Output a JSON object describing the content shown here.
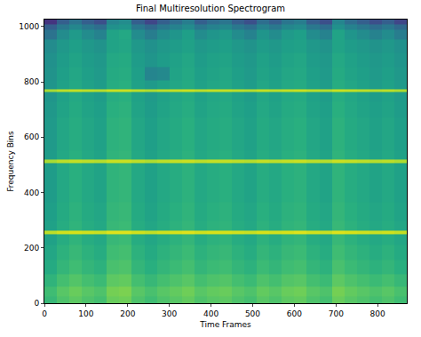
{
  "chart_data": {
    "type": "heatmap",
    "title": "Final Multiresolution Spectrogram",
    "x_label": "Time Frames",
    "y_label": "Frequency Bins",
    "color": "Viridis",
    "xlim": [
      0,
      870
    ],
    "ylim": [
      0,
      1025
    ],
    "xticks": [
      0,
      100,
      200,
      300,
      400,
      500,
      600,
      700,
      800
    ],
    "yticks": [
      0,
      200,
      400,
      600,
      800,
      1000
    ],
    "zlim": [
      0,
      1
    ],
    "x": [
      15,
      45,
      75,
      105,
      135,
      165,
      195,
      225,
      255,
      285,
      315,
      345,
      375,
      405,
      435,
      465,
      495,
      525,
      555,
      585,
      615,
      645,
      675,
      705,
      735,
      765,
      795,
      825,
      855
    ],
    "y": [
      8,
      40,
      80,
      130,
      180,
      244,
      256,
      268,
      330,
      400,
      450,
      500,
      512,
      524,
      580,
      640,
      700,
      756,
      768,
      780,
      830,
      880,
      930,
      975,
      1000,
      1018
    ],
    "cells": [
      [
        0.67,
        0.72,
        0.75,
        0.72,
        0.7,
        0.77,
        0.78,
        0.72,
        0.69,
        0.72,
        0.74,
        0.76,
        0.72,
        0.74,
        0.75,
        0.72,
        0.7,
        0.74,
        0.72,
        0.75,
        0.76,
        0.72,
        0.7,
        0.77,
        0.74,
        0.72,
        0.7,
        0.72,
        0.69
      ],
      [
        0.69,
        0.74,
        0.77,
        0.74,
        0.72,
        0.79,
        0.8,
        0.74,
        0.71,
        0.74,
        0.76,
        0.78,
        0.74,
        0.76,
        0.77,
        0.74,
        0.72,
        0.76,
        0.74,
        0.77,
        0.78,
        0.74,
        0.72,
        0.79,
        0.76,
        0.74,
        0.72,
        0.74,
        0.71
      ],
      [
        0.65,
        0.7,
        0.73,
        0.7,
        0.68,
        0.75,
        0.76,
        0.7,
        0.67,
        0.7,
        0.72,
        0.74,
        0.7,
        0.72,
        0.73,
        0.7,
        0.68,
        0.72,
        0.7,
        0.73,
        0.74,
        0.7,
        0.68,
        0.75,
        0.72,
        0.7,
        0.68,
        0.7,
        0.67
      ],
      [
        0.61,
        0.66,
        0.69,
        0.66,
        0.64,
        0.71,
        0.72,
        0.66,
        0.63,
        0.66,
        0.68,
        0.7,
        0.66,
        0.68,
        0.69,
        0.66,
        0.64,
        0.68,
        0.66,
        0.69,
        0.7,
        0.66,
        0.64,
        0.71,
        0.68,
        0.66,
        0.64,
        0.66,
        0.63
      ],
      [
        0.59,
        0.64,
        0.67,
        0.64,
        0.62,
        0.69,
        0.7,
        0.64,
        0.61,
        0.64,
        0.66,
        0.68,
        0.64,
        0.66,
        0.67,
        0.64,
        0.62,
        0.66,
        0.64,
        0.67,
        0.68,
        0.64,
        0.62,
        0.69,
        0.66,
        0.64,
        0.62,
        0.64,
        0.61
      ],
      [
        0.57,
        0.62,
        0.65,
        0.62,
        0.6,
        0.67,
        0.68,
        0.62,
        0.59,
        0.62,
        0.64,
        0.66,
        0.62,
        0.64,
        0.65,
        0.62,
        0.6,
        0.64,
        0.62,
        0.65,
        0.66,
        0.62,
        0.6,
        0.67,
        0.64,
        0.62,
        0.6,
        0.62,
        0.59
      ],
      [
        0.9,
        0.93,
        0.94,
        0.93,
        0.92,
        0.95,
        0.95,
        0.93,
        0.91,
        0.93,
        0.94,
        0.95,
        0.93,
        0.94,
        0.94,
        0.93,
        0.92,
        0.94,
        0.93,
        0.94,
        0.95,
        0.93,
        0.92,
        0.95,
        0.94,
        0.93,
        0.92,
        0.93,
        0.91
      ],
      [
        0.57,
        0.62,
        0.65,
        0.62,
        0.6,
        0.67,
        0.68,
        0.62,
        0.59,
        0.62,
        0.64,
        0.66,
        0.62,
        0.64,
        0.65,
        0.62,
        0.6,
        0.64,
        0.62,
        0.65,
        0.66,
        0.62,
        0.6,
        0.67,
        0.64,
        0.62,
        0.6,
        0.62,
        0.59
      ],
      [
        0.56,
        0.61,
        0.64,
        0.61,
        0.59,
        0.66,
        0.67,
        0.61,
        0.58,
        0.61,
        0.63,
        0.65,
        0.61,
        0.63,
        0.64,
        0.61,
        0.59,
        0.63,
        0.61,
        0.64,
        0.65,
        0.61,
        0.59,
        0.66,
        0.63,
        0.61,
        0.59,
        0.61,
        0.58
      ],
      [
        0.55,
        0.6,
        0.63,
        0.6,
        0.58,
        0.65,
        0.66,
        0.6,
        0.57,
        0.6,
        0.62,
        0.64,
        0.6,
        0.62,
        0.63,
        0.6,
        0.58,
        0.62,
        0.6,
        0.63,
        0.64,
        0.6,
        0.58,
        0.65,
        0.62,
        0.6,
        0.58,
        0.6,
        0.57
      ],
      [
        0.55,
        0.6,
        0.63,
        0.6,
        0.58,
        0.65,
        0.66,
        0.6,
        0.57,
        0.6,
        0.62,
        0.64,
        0.6,
        0.62,
        0.63,
        0.6,
        0.58,
        0.62,
        0.6,
        0.63,
        0.64,
        0.6,
        0.58,
        0.65,
        0.62,
        0.6,
        0.58,
        0.6,
        0.57
      ],
      [
        0.55,
        0.6,
        0.63,
        0.6,
        0.58,
        0.65,
        0.66,
        0.6,
        0.57,
        0.6,
        0.62,
        0.64,
        0.6,
        0.62,
        0.63,
        0.6,
        0.58,
        0.62,
        0.6,
        0.63,
        0.64,
        0.6,
        0.58,
        0.65,
        0.62,
        0.6,
        0.58,
        0.6,
        0.57
      ],
      [
        0.87,
        0.9,
        0.91,
        0.9,
        0.89,
        0.92,
        0.92,
        0.9,
        0.88,
        0.9,
        0.91,
        0.92,
        0.9,
        0.91,
        0.91,
        0.9,
        0.89,
        0.91,
        0.9,
        0.91,
        0.92,
        0.9,
        0.89,
        0.92,
        0.91,
        0.9,
        0.89,
        0.9,
        0.88
      ],
      [
        0.55,
        0.6,
        0.63,
        0.6,
        0.58,
        0.65,
        0.66,
        0.6,
        0.57,
        0.6,
        0.62,
        0.64,
        0.6,
        0.62,
        0.63,
        0.6,
        0.58,
        0.62,
        0.6,
        0.63,
        0.64,
        0.6,
        0.58,
        0.65,
        0.62,
        0.6,
        0.58,
        0.6,
        0.57
      ],
      [
        0.54,
        0.59,
        0.62,
        0.59,
        0.57,
        0.64,
        0.65,
        0.59,
        0.56,
        0.59,
        0.61,
        0.63,
        0.59,
        0.61,
        0.62,
        0.59,
        0.57,
        0.61,
        0.59,
        0.62,
        0.63,
        0.59,
        0.57,
        0.64,
        0.61,
        0.59,
        0.57,
        0.59,
        0.56
      ],
      [
        0.54,
        0.59,
        0.62,
        0.59,
        0.57,
        0.64,
        0.65,
        0.59,
        0.56,
        0.59,
        0.61,
        0.63,
        0.59,
        0.61,
        0.62,
        0.59,
        0.57,
        0.61,
        0.59,
        0.62,
        0.63,
        0.59,
        0.57,
        0.64,
        0.61,
        0.59,
        0.57,
        0.59,
        0.56
      ],
      [
        0.53,
        0.58,
        0.61,
        0.58,
        0.56,
        0.63,
        0.64,
        0.58,
        0.55,
        0.58,
        0.6,
        0.62,
        0.58,
        0.6,
        0.61,
        0.58,
        0.56,
        0.6,
        0.58,
        0.61,
        0.62,
        0.58,
        0.56,
        0.63,
        0.6,
        0.58,
        0.56,
        0.58,
        0.55
      ],
      [
        0.52,
        0.57,
        0.6,
        0.57,
        0.55,
        0.62,
        0.63,
        0.57,
        0.54,
        0.57,
        0.59,
        0.61,
        0.57,
        0.59,
        0.6,
        0.57,
        0.55,
        0.59,
        0.57,
        0.6,
        0.61,
        0.57,
        0.55,
        0.62,
        0.59,
        0.57,
        0.55,
        0.57,
        0.54
      ],
      [
        0.87,
        0.9,
        0.91,
        0.9,
        0.89,
        0.92,
        0.92,
        0.9,
        0.88,
        0.9,
        0.91,
        0.92,
        0.9,
        0.91,
        0.91,
        0.9,
        0.89,
        0.91,
        0.9,
        0.91,
        0.92,
        0.9,
        0.89,
        0.92,
        0.91,
        0.9,
        0.89,
        0.9,
        0.88
      ],
      [
        0.52,
        0.57,
        0.6,
        0.57,
        0.55,
        0.62,
        0.63,
        0.57,
        0.54,
        0.57,
        0.59,
        0.61,
        0.57,
        0.59,
        0.6,
        0.57,
        0.55,
        0.59,
        0.57,
        0.6,
        0.61,
        0.57,
        0.55,
        0.62,
        0.59,
        0.57,
        0.55,
        0.57,
        0.54
      ],
      [
        0.51,
        0.56,
        0.59,
        0.56,
        0.54,
        0.61,
        0.62,
        0.56,
        0.45,
        0.47,
        0.58,
        0.6,
        0.56,
        0.58,
        0.59,
        0.56,
        0.54,
        0.58,
        0.56,
        0.59,
        0.6,
        0.56,
        0.54,
        0.61,
        0.58,
        0.56,
        0.54,
        0.56,
        0.53
      ],
      [
        0.5,
        0.55,
        0.58,
        0.55,
        0.53,
        0.6,
        0.61,
        0.55,
        0.52,
        0.55,
        0.57,
        0.59,
        0.55,
        0.57,
        0.58,
        0.55,
        0.53,
        0.57,
        0.55,
        0.58,
        0.59,
        0.55,
        0.53,
        0.6,
        0.57,
        0.55,
        0.53,
        0.55,
        0.52
      ],
      [
        0.48,
        0.53,
        0.56,
        0.53,
        0.51,
        0.58,
        0.59,
        0.53,
        0.5,
        0.53,
        0.55,
        0.57,
        0.53,
        0.55,
        0.56,
        0.53,
        0.51,
        0.55,
        0.53,
        0.56,
        0.57,
        0.53,
        0.51,
        0.58,
        0.55,
        0.53,
        0.51,
        0.53,
        0.5
      ],
      [
        0.38,
        0.48,
        0.54,
        0.48,
        0.44,
        0.58,
        0.6,
        0.48,
        0.42,
        0.48,
        0.52,
        0.56,
        0.48,
        0.52,
        0.54,
        0.48,
        0.44,
        0.52,
        0.48,
        0.54,
        0.56,
        0.48,
        0.44,
        0.58,
        0.52,
        0.48,
        0.44,
        0.48,
        0.42
      ],
      [
        0.3,
        0.4,
        0.46,
        0.4,
        0.36,
        0.5,
        0.52,
        0.4,
        0.34,
        0.4,
        0.44,
        0.48,
        0.4,
        0.44,
        0.46,
        0.4,
        0.36,
        0.44,
        0.4,
        0.46,
        0.48,
        0.4,
        0.36,
        0.5,
        0.44,
        0.4,
        0.36,
        0.4,
        0.34
      ],
      [
        0.15,
        0.3,
        0.39,
        0.3,
        0.24,
        0.45,
        0.48,
        0.3,
        0.21,
        0.3,
        0.36,
        0.42,
        0.3,
        0.36,
        0.39,
        0.3,
        0.24,
        0.36,
        0.3,
        0.39,
        0.42,
        0.3,
        0.24,
        0.45,
        0.36,
        0.3,
        0.24,
        0.3,
        0.21
      ]
    ]
  }
}
